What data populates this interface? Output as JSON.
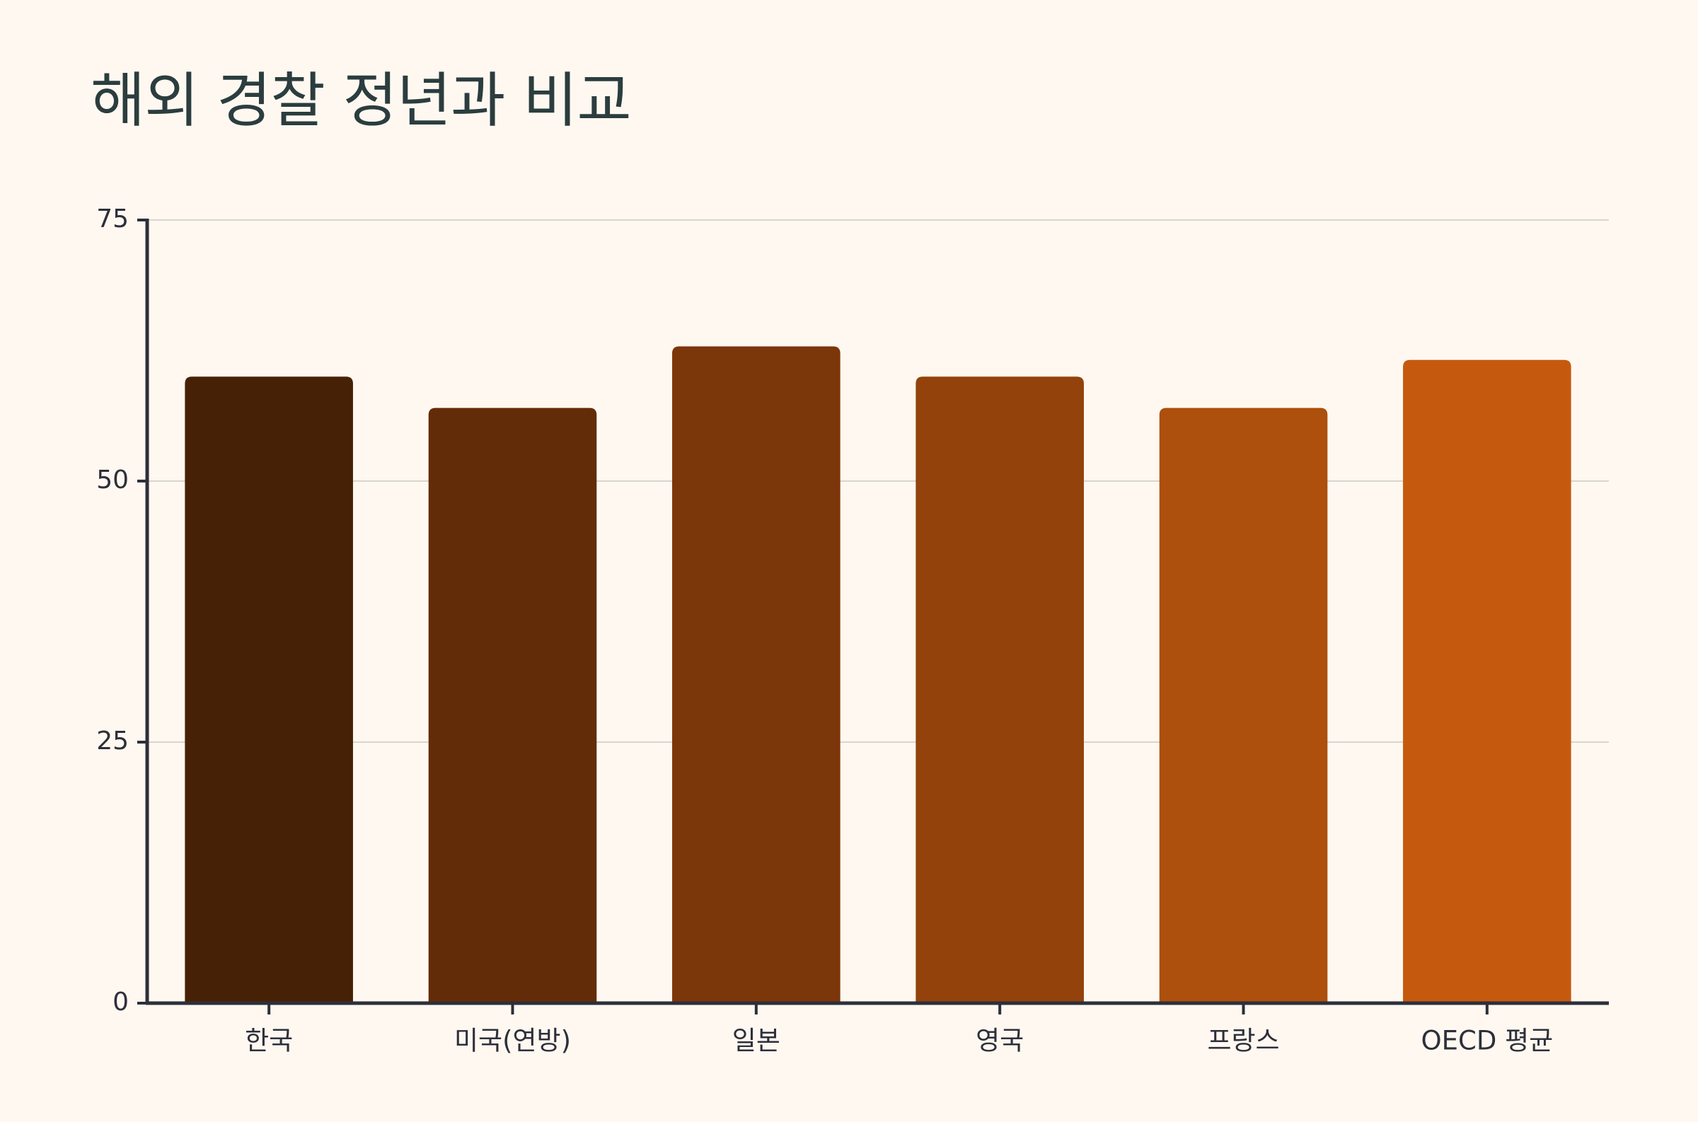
{
  "chart_data": {
    "type": "bar",
    "title": "해외 경찰 정년과 비교",
    "xlabel": "",
    "ylabel": "",
    "categories": [
      "한국",
      "미국(연방)",
      "일본",
      "영국",
      "프랑스",
      "OECD 평균"
    ],
    "values": [
      60,
      57,
      62.9,
      60,
      57,
      61.6
    ],
    "colors": [
      "#472106",
      "#632c08",
      "#7b3609",
      "#93420b",
      "#ad4f0d",
      "#c55a0f"
    ],
    "ylim": [
      0,
      75
    ],
    "yticks": [
      0,
      25,
      50,
      75
    ],
    "grid": true,
    "legend": "none"
  },
  "style": {
    "background": "#fff8f0",
    "title_color": "#2b3d3e",
    "axis_color": "#2d2f3a",
    "grid_color": "#d8d6d0"
  }
}
